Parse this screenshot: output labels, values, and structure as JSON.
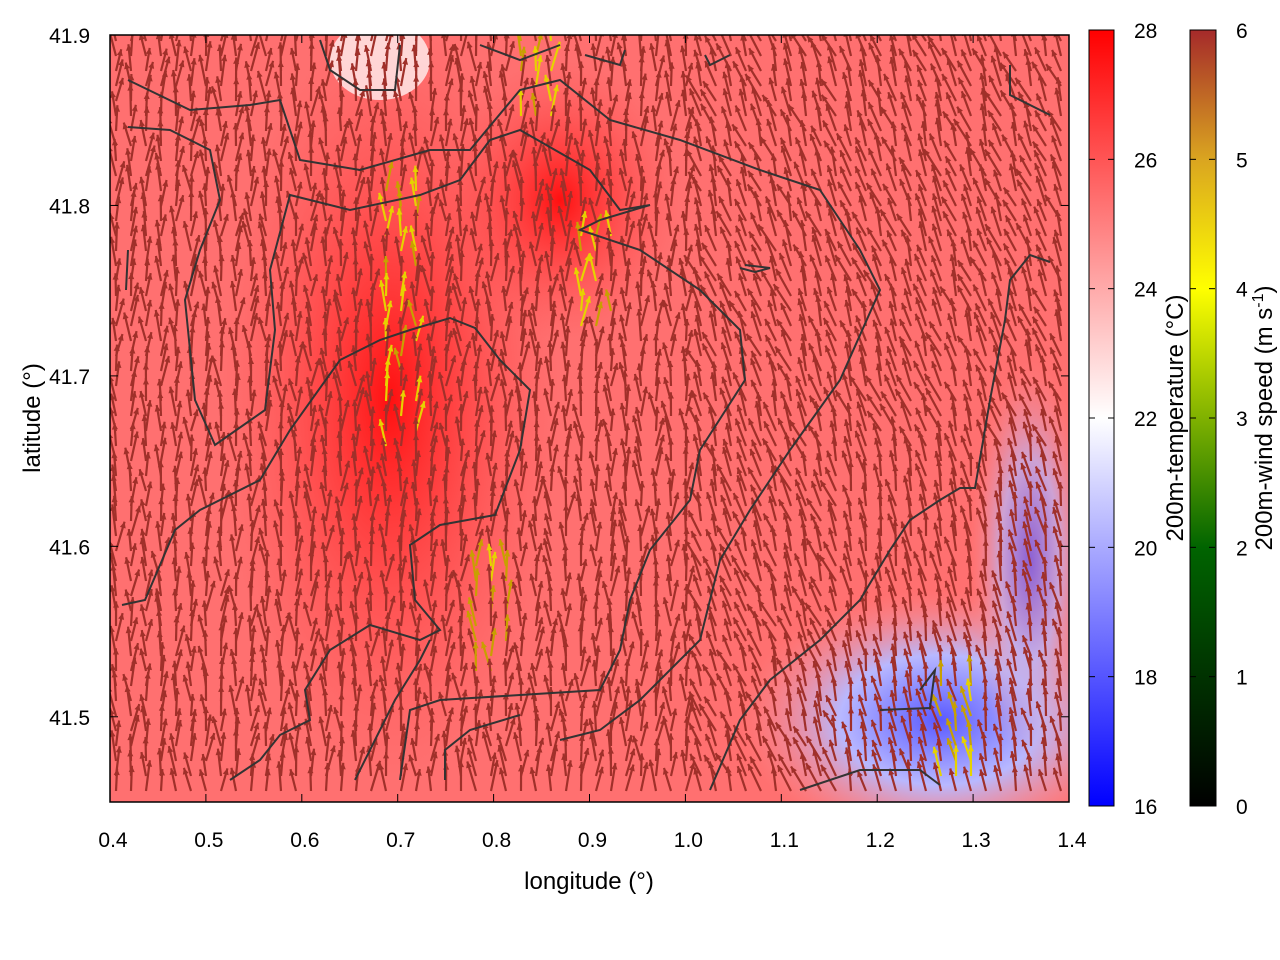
{
  "chart_data": {
    "type": "heatmap",
    "overlay": "vector field (wind arrows colored by speed) with black contour lines",
    "xlabel": "longitude (°)",
    "ylabel": "latitude (°)",
    "xlim": [
      0.4,
      1.4
    ],
    "ylim": [
      41.45,
      41.9
    ],
    "xticks": [
      "0.4",
      "0.5",
      "0.6",
      "0.7",
      "0.8",
      "0.9",
      "1.0",
      "1.1",
      "1.2",
      "1.3",
      "1.4"
    ],
    "yticks": [
      "41.5",
      "41.6",
      "41.7",
      "41.8",
      "41.9"
    ],
    "grid": false,
    "colorbars": [
      {
        "label": "200m-temperature (°C)",
        "range": [
          16,
          28
        ],
        "ticks": [
          "16",
          "18",
          "20",
          "22",
          "24",
          "26",
          "28"
        ],
        "palette": [
          "#0000ff",
          "#ffffff",
          "#ff0000"
        ]
      },
      {
        "label_main": "200m-wind speed (m s",
        "label_sup": "-1",
        "label_end": ")",
        "range": [
          0,
          6
        ],
        "ticks": [
          "0",
          "1",
          "2",
          "3",
          "4",
          "5",
          "6"
        ],
        "palette": [
          "#000000",
          "#006400",
          "#ffff00",
          "#daa520",
          "#a52a2a"
        ]
      }
    ],
    "temperature_field_summary": {
      "warm_region_max_c": 28,
      "cool_region_southeast_min_c": 18
    },
    "dominant_wind_speed_ms": 6,
    "arrow_color": "#a0302a"
  }
}
